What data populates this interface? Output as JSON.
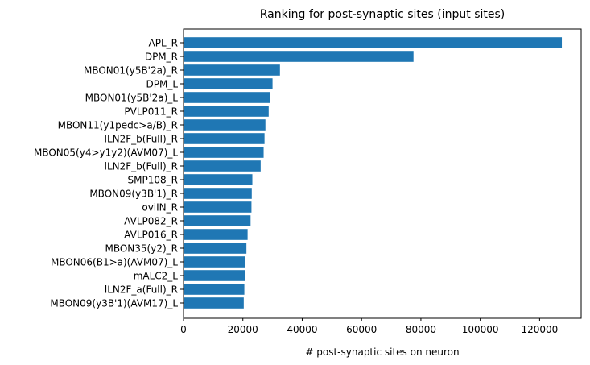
{
  "chart_data": {
    "type": "bar",
    "orientation": "horizontal",
    "title": "Ranking for post-synaptic sites (input sites)",
    "xlabel": "# post-synaptic sites on neuron",
    "ylabel": "",
    "xlim": [
      0,
      134000
    ],
    "xticks": [
      0,
      20000,
      40000,
      60000,
      80000,
      100000,
      120000
    ],
    "xtick_labels": [
      "0",
      "20000",
      "40000",
      "60000",
      "80000",
      "100000",
      "120000"
    ],
    "bar_color": "#1f77b4",
    "grid": false,
    "categories": [
      "APL_R",
      "DPM_R",
      "MBON01(y5B'2a)_R",
      "DPM_L",
      "MBON01(y5B'2a)_L",
      "PVLP011_R",
      "MBON11(y1pedc>a/B)_R",
      "lLN2F_b(Full)_R",
      "MBON05(y4>y1y2)(AVM07)_L",
      "lLN2F_b(Full)_R",
      "SMP108_R",
      "MBON09(y3B'1)_R",
      "oviIN_R",
      "AVLP082_R",
      "AVLP016_R",
      "MBON35(y2)_R",
      "MBON06(B1>a)(AVM07)_L",
      "mALC2_L",
      "lLN2F_a(Full)_R",
      "MBON09(y3B'1)(AVM17)_L"
    ],
    "values": [
      127500,
      77500,
      32500,
      30000,
      29200,
      28700,
      27600,
      27300,
      27000,
      26000,
      23200,
      23000,
      22900,
      22600,
      21600,
      21200,
      20800,
      20700,
      20500,
      20300
    ]
  }
}
